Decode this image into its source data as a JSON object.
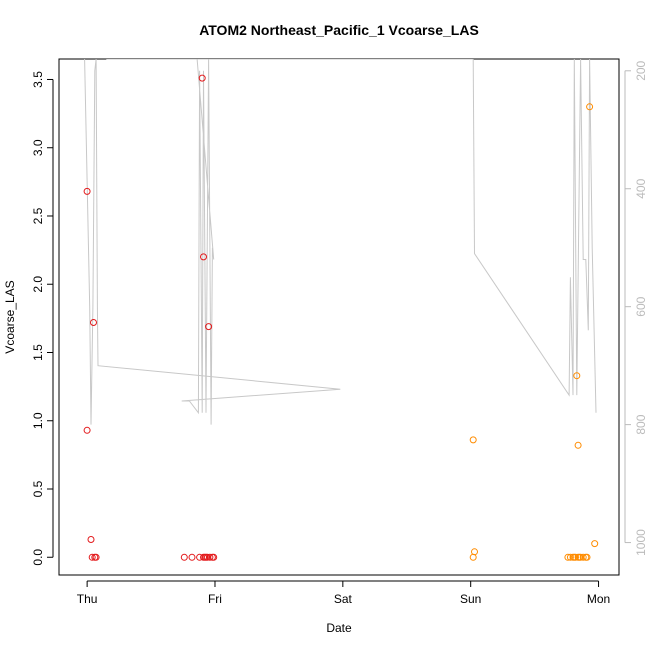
{
  "chart_data": {
    "type": "scatter",
    "title": "ATOM2 Northeast_Pacific_1 Vcoarse_LAS",
    "xlabel": "Date",
    "ylabel": "Vcoarse_LAS",
    "x_ticks": [
      "Thu",
      "Fri",
      "Sat",
      "Sun",
      "Mon"
    ],
    "xlim": [
      -0.22,
      4.16
    ],
    "ylim": [
      -0.13,
      3.65
    ],
    "y_ticks": [
      0.0,
      0.5,
      1.0,
      1.5,
      2.0,
      2.5,
      3.0,
      3.5
    ],
    "y2_ticks": [
      200,
      400,
      600,
      800,
      1000
    ],
    "y2lim": [
      1055,
      180
    ],
    "grid": false,
    "colors": {
      "series_red": "#e31a1c",
      "series_orange": "#ff8c00",
      "altitude_line": "#c8c8c8",
      "axis": "#000000",
      "secondary_axis": "#bbbbbb"
    },
    "series": [
      {
        "color": "red",
        "points": [
          [
            0.0,
            2.68
          ],
          [
            0.0,
            0.93
          ],
          [
            0.03,
            0.13
          ],
          [
            0.04,
            0.0
          ],
          [
            0.05,
            1.72
          ],
          [
            0.06,
            0.0
          ],
          [
            0.07,
            0.0
          ],
          [
            0.76,
            0.0
          ],
          [
            0.82,
            0.0
          ],
          [
            0.88,
            0.0
          ],
          [
            0.9,
            3.51
          ],
          [
            0.91,
            2.2
          ],
          [
            0.91,
            0.0
          ],
          [
            0.92,
            0.0
          ],
          [
            0.93,
            0.0
          ],
          [
            0.94,
            0.0
          ],
          [
            0.95,
            1.69
          ],
          [
            0.96,
            0.0
          ],
          [
            0.98,
            0.0
          ],
          [
            0.99,
            0.0
          ]
        ]
      },
      {
        "color": "orange",
        "points": [
          [
            3.02,
            0.86
          ],
          [
            3.02,
            0.0
          ],
          [
            3.03,
            0.04
          ],
          [
            3.76,
            0.0
          ],
          [
            3.78,
            0.0
          ],
          [
            3.8,
            0.0
          ],
          [
            3.81,
            0.0
          ],
          [
            3.82,
            0.0
          ],
          [
            3.83,
            1.33
          ],
          [
            3.84,
            0.82
          ],
          [
            3.84,
            0.0
          ],
          [
            3.85,
            0.0
          ],
          [
            3.86,
            0.0
          ],
          [
            3.88,
            0.0
          ],
          [
            3.9,
            0.0
          ],
          [
            3.91,
            0.0
          ],
          [
            3.93,
            3.3
          ],
          [
            3.97,
            0.1
          ]
        ]
      }
    ],
    "altitude_track": [
      [
        -0.02,
        180
      ],
      [
        0.02,
        600
      ],
      [
        0.03,
        800
      ],
      [
        0.045,
        600
      ],
      [
        0.06,
        200
      ],
      [
        0.07,
        180
      ],
      [
        0.08,
        600
      ],
      [
        0.085,
        700
      ],
      [
        1.98,
        740
      ],
      [
        0.74,
        760
      ],
      [
        0.8,
        760
      ],
      [
        0.87,
        780
      ],
      [
        0.88,
        200
      ],
      [
        0.9,
        780
      ],
      [
        0.91,
        200
      ],
      [
        0.93,
        780
      ],
      [
        0.95,
        180
      ],
      [
        0.97,
        800
      ],
      [
        0.98,
        500
      ],
      [
        0.99,
        520
      ],
      [
        0.86,
        180
      ],
      [
        0.15,
        180
      ],
      [
        3.02,
        180
      ],
      [
        3.03,
        510
      ],
      [
        3.77,
        750
      ],
      [
        3.78,
        550
      ],
      [
        3.8,
        750
      ],
      [
        3.81,
        180
      ],
      [
        3.83,
        750
      ],
      [
        3.86,
        180
      ],
      [
        3.88,
        520
      ],
      [
        3.9,
        520
      ],
      [
        3.92,
        640
      ],
      [
        3.93,
        180
      ],
      [
        3.95,
        500
      ],
      [
        3.98,
        780
      ]
    ]
  }
}
